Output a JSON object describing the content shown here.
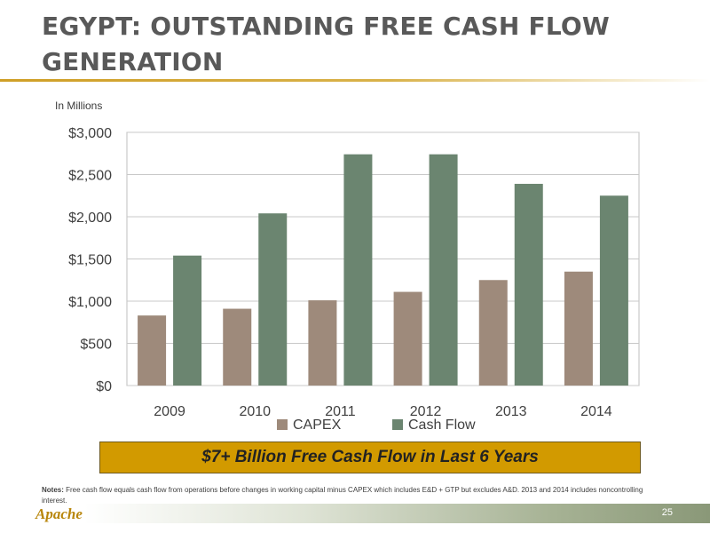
{
  "slide": {
    "title": "EGYPT: OUTSTANDING FREE CASH FLOW GENERATION",
    "units_label": "In Millions",
    "callout": "$7+ Billion Free Cash Flow in Last 6 Years",
    "notes_label": "Notes:",
    "notes_text": " Free cash flow equals cash flow from operations before changes in working capital minus CAPEX which includes E&D + GTP but excludes A&D. 2013 and 2014 includes noncontrolling interest.",
    "logo_text": "Apache",
    "page_number": "25"
  },
  "colors": {
    "capex": "#9e8a7b",
    "cash_flow": "#6b8570",
    "gold": "#d29a00",
    "title": "#595959"
  },
  "chart_data": {
    "type": "bar",
    "categories": [
      "2009",
      "2010",
      "2011",
      "2012",
      "2013",
      "2014"
    ],
    "series": [
      {
        "name": "CAPEX",
        "values": [
          830,
          910,
          1010,
          1110,
          1250,
          1350
        ]
      },
      {
        "name": "Cash Flow",
        "values": [
          1540,
          2040,
          2740,
          2740,
          2390,
          2250
        ]
      }
    ],
    "y_ticks": [
      0,
      500,
      1000,
      1500,
      2000,
      2500,
      3000
    ],
    "y_tick_labels": [
      "$0",
      "$500",
      "$1,000",
      "$1,500",
      "$2,000",
      "$2,500",
      "$3,000"
    ],
    "ylim": [
      0,
      3000
    ],
    "grid": true,
    "legend_position": "bottom"
  }
}
